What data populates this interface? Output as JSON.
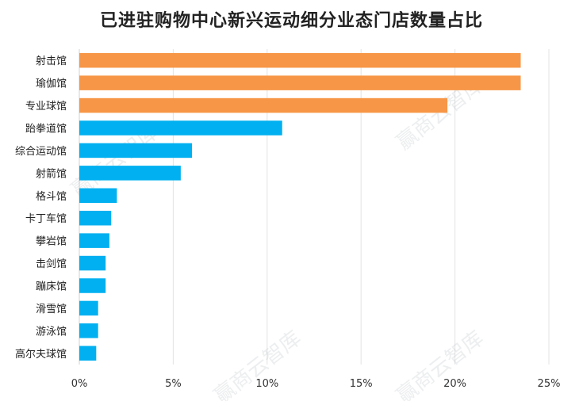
{
  "chart_data": {
    "type": "bar",
    "orientation": "horizontal",
    "title": "已进驻购物中心新兴运动细分业态门店数量占比",
    "categories": [
      "射击馆",
      "瑜伽馆",
      "专业球馆",
      "跆拳道馆",
      "综合运动馆",
      "射箭馆",
      "格斗馆",
      "卡丁车馆",
      "攀岩馆",
      "击剑馆",
      "蹦床馆",
      "滑雪馆",
      "游泳馆",
      "高尔夫球馆"
    ],
    "values": [
      23.5,
      23.5,
      19.6,
      10.8,
      6.0,
      5.4,
      2.0,
      1.7,
      1.6,
      1.4,
      1.4,
      1.0,
      1.0,
      0.9
    ],
    "colors": [
      "#f79646",
      "#f79646",
      "#f79646",
      "#00b0f0",
      "#00b0f0",
      "#00b0f0",
      "#00b0f0",
      "#00b0f0",
      "#00b0f0",
      "#00b0f0",
      "#00b0f0",
      "#00b0f0",
      "#00b0f0",
      "#00b0f0"
    ],
    "xlim": [
      0,
      25
    ],
    "xticks": [
      "0%",
      "5%",
      "10%",
      "15%",
      "20%",
      "25%"
    ],
    "xtick_values": [
      0,
      5,
      10,
      15,
      20,
      25
    ],
    "grid": "vertical",
    "watermark": "赢商云智库"
  }
}
